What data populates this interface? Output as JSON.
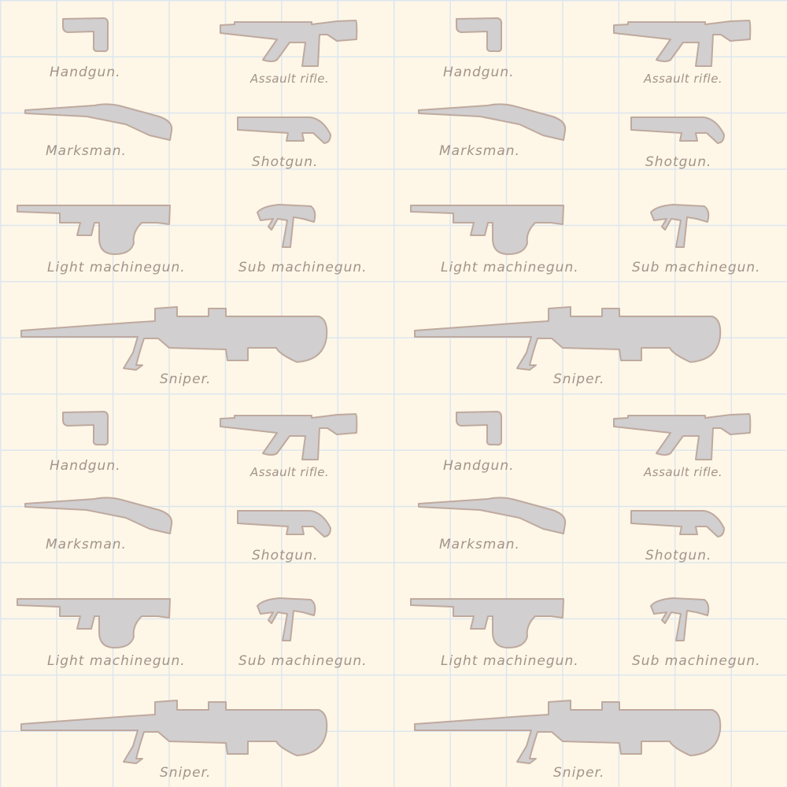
{
  "pattern": {
    "background_color": "#fef7e8",
    "grid_color": "#dde6ee",
    "silhouette_color": "#d1cfd0",
    "outline_color": "#bfa99e",
    "label_color": "#a39389",
    "tiles": [
      {
        "handgun": "Handgun.",
        "assault_rifle": "Assault rifle.",
        "marksman": "Marksman.",
        "shotgun": "Shotgun.",
        "light_machinegun": "Light machinegun.",
        "submachinegun": "Sub machinegun.",
        "sniper": "Sniper."
      },
      {
        "handgun": "Handgun.",
        "assault_rifle": "Assault rifle.",
        "marksman": "Marksman.",
        "shotgun": "Shotgun.",
        "light_machinegun": "Light machinegun.",
        "submachinegun": "Sub machinegun.",
        "sniper": "Sniper."
      },
      {
        "handgun": "Handgun.",
        "assault_rifle": "Assault rifle.",
        "marksman": "Marksman.",
        "shotgun": "Shotgun.",
        "light_machinegun": "Light machinegun.",
        "submachinegun": "Sub machinegun.",
        "sniper": "Sniper."
      },
      {
        "handgun": "Handgun.",
        "assault_rifle": "Assault rifle.",
        "marksman": "Marksman.",
        "shotgun": "Shotgun.",
        "light_machinegun": "Light machinegun.",
        "submachinegun": "Sub machinegun.",
        "sniper": "Sniper."
      }
    ]
  }
}
